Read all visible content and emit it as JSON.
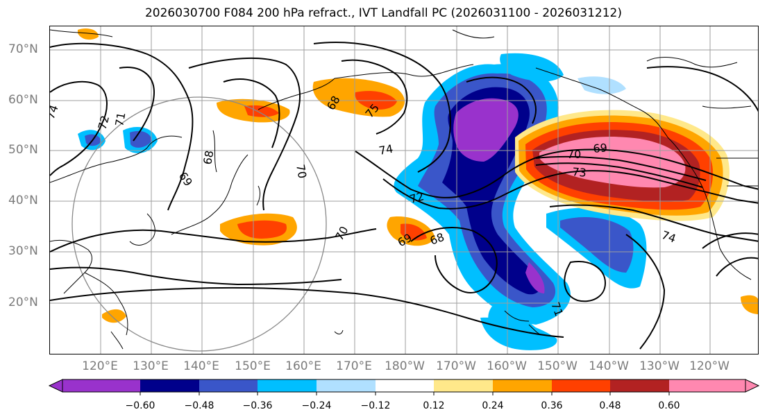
{
  "title": "2026030700 F084 200 hPa refract., IVT Landfall PC (2026031100 - 2026031212)",
  "lat_labels": [
    "70°N",
    "60°N",
    "50°N",
    "40°N",
    "30°N",
    "20°N"
  ],
  "lon_labels": [
    "120°E",
    "130°E",
    "140°E",
    "150°E",
    "160°E",
    "170°E",
    "180°W",
    "170°W",
    "160°W",
    "150°W",
    "140°W",
    "130°W",
    "120°W"
  ],
  "contour_labels": [
    "74",
    "72",
    "71",
    "69",
    "68",
    "70",
    "68",
    "75",
    "74",
    "72",
    "70",
    "69",
    "68",
    "71",
    "70",
    "69",
    "73",
    "74"
  ],
  "colorbar": {
    "ticks": [
      "−0.60",
      "−0.48",
      "−0.36",
      "−0.24",
      "−0.12",
      "0.12",
      "0.24",
      "0.36",
      "0.48",
      "0.60"
    ],
    "colors": [
      "#9932cc",
      "#00008b",
      "#3a56c9",
      "#00bfff",
      "#b0e0ff",
      "#ffffff",
      "#ffe88a",
      "#ffa500",
      "#ff4000",
      "#b22222",
      "#ff88b0"
    ],
    "under_color": "#9932cc",
    "over_color": "#ff88b0"
  },
  "colors": {
    "neg_strong": "#9932cc",
    "neg_dark": "#00008b",
    "neg_mid": "#3a56c9",
    "neg_light": "#00bfff",
    "neg_pale": "#b0e0ff",
    "pos_pale": "#ffe88a",
    "pos_light": "#ffa500",
    "pos_mid": "#ff4000",
    "pos_dark": "#b22222",
    "pos_strong": "#ff88b0"
  }
}
